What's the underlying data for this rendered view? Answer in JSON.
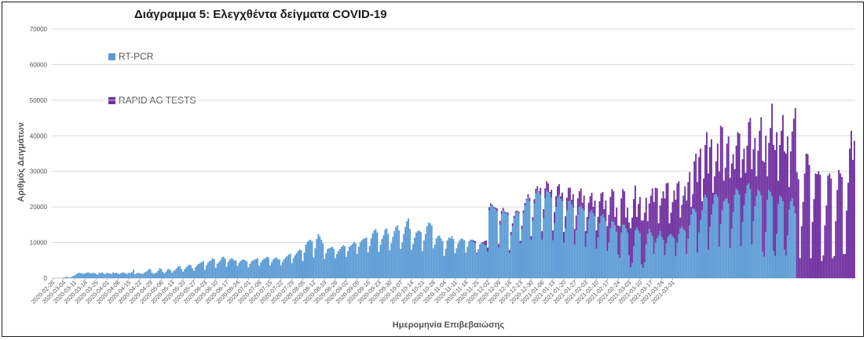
{
  "chart_data": {
    "type": "bar",
    "stacked": true,
    "title": "Διάγραμμα 5: Ελεγχθέντα δείγματα COVID-19",
    "xlabel": "Ημερομηνία Επιβεβαιώσης",
    "ylabel": "Αριθμός Δειγμάτων",
    "ylim": [
      0,
      70000
    ],
    "yticks": [
      "0",
      "10000",
      "20000",
      "30000",
      "40000",
      "50000",
      "60000",
      "70000"
    ],
    "grid": true,
    "legend_position": "top-left",
    "x_start": "2020-02-26",
    "x_tick_labels": [
      "2020-02-26",
      "2020-03-04",
      "2020-03-11",
      "2020-03-18",
      "2020-03-25",
      "2020-04-01",
      "2020-04-08",
      "2020-04-15",
      "2020-04-22",
      "2020-04-29",
      "2020-05-06",
      "2020-05-13",
      "2020-05-20",
      "2020-05-27",
      "2020-06-03",
      "2020-06-10",
      "2020-06-17",
      "2020-06-24",
      "2020-07-01",
      "2020-07-08",
      "2020-07-15",
      "2020-07-22",
      "2020-07-29",
      "2020-08-05",
      "2020-08-12",
      "2020-08-19",
      "2020-08-26",
      "2020-09-02",
      "2020-09-09",
      "2020-09-16",
      "2020-09-23",
      "2020-09-30",
      "2020-10-07",
      "2020-10-14",
      "2020-10-21",
      "2020-10-28",
      "2020-11-04",
      "2020-11-11",
      "2020-11-18",
      "2020-11-25",
      "2020-12-02",
      "2020-12-09",
      "2020-12-16",
      "2020-12-23",
      "2020-12-30",
      "2021-01-06",
      "2021-01-13",
      "2021-01-20",
      "2021-01-27",
      "2021-02-03",
      "2021-02-10",
      "2021-02-17",
      "2021-02-24",
      "2021-03-03",
      "2021-03-10",
      "2021-03-17",
      "2021-03-24",
      "2021-03-31"
    ],
    "series": [
      {
        "name": "RT-PCR",
        "color": "#5b9bd5",
        "values": [
          0,
          0,
          0,
          0,
          0,
          0,
          0,
          100,
          200,
          400,
          200,
          100,
          300,
          500,
          700,
          1000,
          1300,
          1500,
          1400,
          1300,
          1200,
          1400,
          1500,
          1600,
          1400,
          1300,
          1500,
          1400,
          1200,
          1000,
          1500,
          1400,
          1600,
          1300,
          1100,
          1500,
          1400,
          1300,
          1200,
          1600,
          1400,
          1500,
          1300,
          1100,
          1400,
          1600,
          1500,
          1300,
          1200,
          1500,
          1400,
          1700,
          2400,
          1100,
          1300,
          1500,
          1400,
          1300,
          1200,
          1500,
          1800,
          2000,
          2600,
          2400,
          1500,
          1200,
          1400,
          1600,
          2100,
          2800,
          2500,
          1800,
          1300,
          1800,
          2400,
          2600,
          2200,
          1500,
          2000,
          2400,
          2800,
          3300,
          3400,
          2600,
          1800,
          2500,
          3000,
          3400,
          3800,
          3600,
          2800,
          2100,
          3100,
          3600,
          4000,
          4300,
          4500,
          4800,
          2300,
          3600,
          4300,
          4800,
          5000,
          5600,
          5300,
          2900,
          4000,
          4500,
          5000,
          5800,
          6000,
          5500,
          3200,
          4500,
          5200,
          5600,
          5400,
          4900,
          5000,
          3400,
          4300,
          4800,
          5100,
          5300,
          5000,
          4700,
          3000,
          4000,
          4700,
          5000,
          5200,
          5400,
          5600,
          3500,
          4400,
          5000,
          5400,
          5600,
          6000,
          5800,
          3600,
          4500,
          5200,
          5600,
          5800,
          5400,
          5200,
          3600,
          4600,
          5300,
          5800,
          6200,
          6600,
          6900,
          4200,
          5600,
          6400,
          7000,
          7600,
          8000,
          7800,
          4800,
          7200,
          9400,
          10200,
          10600,
          10800,
          10300,
          5800,
          8400,
          11000,
          12400,
          11800,
          10800,
          9800,
          5400,
          7000,
          8200,
          8400,
          8600,
          8800,
          8200,
          5600,
          6800,
          7600,
          8200,
          8800,
          9200,
          9000,
          6000,
          7600,
          8800,
          9200,
          9600,
          10200,
          9800,
          6800,
          8800,
          10000,
          10600,
          11000,
          11200,
          11400,
          7200,
          9000,
          11200,
          12600,
          13400,
          13800,
          12800,
          7400,
          9400,
          11000,
          12000,
          13600,
          14000,
          12400,
          7800,
          9800,
          11600,
          13200,
          14400,
          14800,
          13400,
          8200,
          10000,
          12400,
          14400,
          16000,
          16800,
          13800,
          8000,
          9600,
          11400,
          12800,
          13200,
          13400,
          13000,
          7600,
          10600,
          12400,
          14600,
          15600,
          15400,
          14800,
          8400,
          9400,
          11200,
          11800,
          12000,
          11200,
          10400,
          6200,
          8200,
          10600,
          11400,
          11200,
          11800,
          11000,
          7000,
          8400,
          9800,
          10600,
          11200,
          11000,
          10600,
          7200,
          8800,
          10400,
          10800,
          10600,
          10200,
          9800,
          6800,
          8000,
          9600,
          10000,
          9800,
          9400,
          9200,
          7400,
          19000,
          20400,
          20200,
          19800,
          19400,
          18800,
          8600,
          15000,
          18000,
          19000,
          18600,
          18200,
          17800,
          7000,
          12000,
          14600,
          16800,
          18400,
          18800,
          18200,
          9800,
          13800,
          18200,
          20400,
          22000,
          22600,
          21600,
          10800,
          16000,
          21000,
          23800,
          24600,
          24200,
          23400,
          10800,
          16800,
          22400,
          24600,
          24200,
          23800,
          22600,
          10600,
          15400,
          20000,
          22600,
          23400,
          22400,
          21600,
          10000,
          14000,
          19000,
          21600,
          21800,
          20800,
          19800,
          9400,
          13400,
          17800,
          20000,
          20400,
          19600,
          19000,
          8800,
          12600,
          16600,
          18600,
          19200,
          18200,
          17400,
          8200,
          11400,
          15400,
          17400,
          18000,
          17000,
          16000,
          7600,
          10000,
          14000,
          16000,
          15800,
          14800,
          13000,
          6600,
          5600,
          12800,
          15000,
          15000,
          14000,
          12800,
          6400,
          3000,
          4200,
          9000,
          13400,
          14200,
          13400,
          12600,
          3800,
          2800,
          4400,
          9400,
          12400,
          13800,
          12800,
          11800,
          6800,
          10000,
          11200,
          12000,
          13200,
          11600,
          10800,
          6400,
          9800,
          11600,
          12200,
          12400,
          11800,
          11200,
          6200,
          10000,
          12400,
          14000,
          14600,
          13800,
          13200,
          6800,
          11000,
          14800,
          17800,
          19600,
          19400,
          18600,
          7200,
          12800,
          16400,
          19000,
          22600,
          23400,
          22600,
          8000,
          14400,
          17800,
          20800,
          23400,
          23600,
          22800,
          8800,
          15200,
          19000,
          21600,
          22200,
          22400,
          21000,
          8400,
          13800,
          18600,
          23400,
          25200,
          24600,
          23400,
          9000,
          15800,
          20400,
          23800,
          26200,
          26600,
          25000,
          9400,
          16000,
          20200,
          23000,
          24800,
          24400,
          23200,
          7400,
          6000,
          13000,
          22000,
          24800,
          24200,
          23000,
          7600,
          6200,
          12400,
          20800,
          23200,
          22600,
          21600,
          8000,
          6400,
          12000,
          19200,
          21600,
          22400,
          20200,
          18200
        ]
      },
      {
        "name": "RAPID AG TESTS",
        "color": "#7030a0",
        "values": [
          0,
          0,
          0,
          0,
          0,
          0,
          0,
          0,
          0,
          0,
          0,
          0,
          0,
          0,
          0,
          0,
          0,
          0,
          0,
          0,
          0,
          0,
          0,
          0,
          0,
          0,
          0,
          0,
          0,
          0,
          0,
          0,
          0,
          0,
          0,
          0,
          0,
          0,
          0,
          0,
          0,
          0,
          0,
          0,
          0,
          0,
          0,
          0,
          0,
          0,
          0,
          0,
          0,
          0,
          0,
          0,
          0,
          0,
          0,
          0,
          0,
          0,
          0,
          0,
          0,
          0,
          0,
          0,
          0,
          0,
          0,
          0,
          0,
          0,
          0,
          0,
          0,
          0,
          0,
          0,
          0,
          0,
          0,
          0,
          0,
          0,
          0,
          0,
          0,
          0,
          0,
          0,
          0,
          0,
          0,
          0,
          0,
          0,
          0,
          0,
          0,
          0,
          0,
          0,
          0,
          0,
          0,
          0,
          0,
          0,
          0,
          0,
          0,
          0,
          0,
          0,
          0,
          0,
          0,
          0,
          0,
          0,
          0,
          0,
          0,
          0,
          0,
          0,
          0,
          0,
          0,
          0,
          0,
          0,
          0,
          0,
          0,
          0,
          0,
          0,
          0,
          0,
          0,
          0,
          0,
          0,
          0,
          0,
          0,
          0,
          0,
          0,
          0,
          0,
          0,
          0,
          0,
          0,
          0,
          0,
          0,
          0,
          0,
          0,
          0,
          0,
          0,
          0,
          0,
          0,
          0,
          0,
          0,
          0,
          0,
          0,
          0,
          0,
          0,
          0,
          0,
          0,
          0,
          0,
          0,
          0,
          0,
          0,
          0,
          0,
          0,
          0,
          0,
          0,
          0,
          0,
          0,
          0,
          0,
          0,
          0,
          0,
          0,
          0,
          0,
          0,
          0,
          0,
          0,
          0,
          0,
          0,
          0,
          0,
          0,
          0,
          0,
          0,
          0,
          0,
          0,
          0,
          0,
          0,
          0,
          0,
          0,
          0,
          0,
          0,
          0,
          0,
          0,
          0,
          0,
          0,
          0,
          0,
          0,
          0,
          0,
          0,
          0,
          0,
          0,
          0,
          0,
          0,
          0,
          0,
          0,
          0,
          0,
          0,
          0,
          0,
          0,
          0,
          0,
          0,
          0,
          0,
          0,
          0,
          0,
          0,
          0,
          0,
          0,
          0,
          200,
          400,
          600,
          300,
          100,
          0,
          0,
          300,
          1000,
          1400,
          1200,
          900,
          600,
          300,
          200,
          400,
          800,
          1000,
          1100,
          900,
          700,
          200,
          300,
          600,
          900,
          1000,
          800,
          700,
          400,
          200,
          500,
          700,
          900,
          800,
          700,
          300,
          1000,
          900,
          1000,
          1100,
          1200,
          1300,
          1200,
          200,
          2000,
          2400,
          2600,
          2800,
          2600,
          2400,
          400,
          2200,
          2800,
          3200,
          3000,
          3200,
          3000,
          600,
          2400,
          3000,
          3400,
          3600,
          3800,
          3600,
          1200,
          3800,
          4400,
          4200,
          4600,
          4400,
          4800,
          1600,
          4200,
          4400,
          4600,
          4600,
          4400,
          4800,
          1800,
          4400,
          5200,
          5800,
          6200,
          6400,
          6200,
          2400,
          5800,
          7000,
          7800,
          8800,
          9000,
          8600,
          2400,
          6800,
          8200,
          9000,
          9600,
          10000,
          9400,
          3000,
          7000,
          9200,
          11000,
          12800,
          13200,
          12600,
          3000,
          7400,
          10200,
          12400,
          13400,
          14000,
          13200,
          3600,
          7200,
          10400,
          13400,
          14600,
          15400,
          14000,
          3400,
          7200,
          10800,
          13600,
          16000,
          16800,
          15200,
          3200,
          6000,
          9600,
          13400,
          15800,
          16600,
          14800,
          3000,
          6000,
          9400,
          12600,
          15000,
          16000,
          15000,
          2200,
          4000,
          13400,
          16400,
          19800,
          21200,
          20000,
          2600,
          5400,
          14000,
          18400,
          21400,
          22400,
          21200,
          3200,
          5200,
          9200,
          15000,
          21200,
          27600,
          23400,
          5800,
          8800,
          15400,
          18800,
          19800,
          18400,
          16200,
          7200,
          12000,
          16400,
          17200,
          19200,
          17600,
          16000,
          5800,
          11000,
          17200,
          20000,
          21200,
          20200,
          19200,
          5600,
          11000,
          17000,
          22000,
          25600,
          26600,
          27000,
          6600,
          13200,
          18000,
          26000,
          29800,
          29800,
          28600,
          6600,
          14200,
          18800,
          24200,
          27600,
          28600,
          27800,
          6400,
          14000,
          18800,
          24600,
          29600,
          29800,
          27800,
          5600,
          14600,
          21400,
          29400,
          35000,
          34800,
          31800,
          5600,
          15800,
          22200,
          29400,
          29200,
          30000,
          29000,
          4800,
          6400,
          14800,
          20400,
          28800,
          29400,
          28000,
          5600,
          6200,
          16000,
          24800,
          30400,
          29400,
          28400,
          6800,
          6800,
          19000,
          26800,
          36400,
          41400,
          33200,
          38600
        ]
      }
    ]
  }
}
